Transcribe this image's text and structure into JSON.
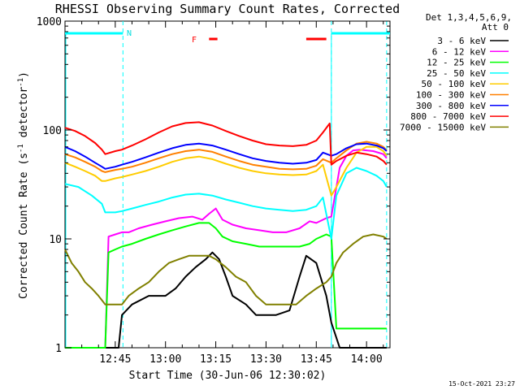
{
  "chart_data": {
    "type": "line",
    "title": "RHESSI Observing Summary Count Rates, Corrected",
    "xlabel": "Start Time (30-Jun-06 12:30:02)",
    "ylabel_main": "Corrected Count Rate (s",
    "ylabel_sup1": "-1",
    "ylabel_mid": " detector",
    "ylabel_sup2": "-1",
    "ylabel_end": ")",
    "y_scale": "log",
    "ylim": [
      1,
      1000
    ],
    "xlim_minutes": [
      0,
      97
    ],
    "x_tick_labels": [
      "12:45",
      "13:00",
      "13:15",
      "13:30",
      "13:45",
      "14:00"
    ],
    "x_tick_minutes": [
      15,
      30,
      45,
      60,
      75,
      90
    ],
    "y_tick_labels": [
      "1",
      "10",
      "100",
      "1000"
    ],
    "y_tick_values": [
      1,
      10,
      100,
      1000
    ],
    "legend_header_1": "Det 1,3,4,5,6,9,",
    "legend_header_2": "Att 0",
    "legend_position": "right, outside plot",
    "timestamp": "15-Oct-2021 23:27",
    "flag_labels": {
      "N": "N",
      "F": "F"
    },
    "flags": {
      "night": [
        [
          0,
          17.3
        ],
        [
          79.5,
          97
        ]
      ],
      "flare": [
        [
          43,
          45.5
        ],
        [
          72,
          78
        ]
      ]
    },
    "dashed_times_minutes": [
      17.3,
      79.5,
      96
    ],
    "series": [
      {
        "name": "3 - 6 keV",
        "color": "#000000",
        "x": [
          0,
          6,
          12,
          16,
          17,
          20,
          25,
          30,
          33,
          36,
          39,
          42,
          44,
          46,
          48,
          50,
          54,
          57,
          60,
          63,
          67,
          70,
          72,
          75,
          78,
          79.5,
          82,
          86,
          90,
          95,
          96
        ],
        "y": [
          1,
          1,
          1,
          1,
          2,
          2.5,
          3,
          3,
          3.5,
          4.5,
          5.5,
          6.5,
          7.5,
          6.5,
          4.5,
          3,
          2.5,
          2,
          2,
          2,
          2.2,
          4.5,
          7,
          6,
          3,
          1.7,
          1,
          1,
          1,
          1,
          1
        ]
      },
      {
        "name": "6 - 12 keV",
        "color": "#ff00ff",
        "x": [
          0,
          12,
          13,
          15,
          17,
          19,
          22,
          26,
          30,
          34,
          38,
          41,
          43,
          45,
          47,
          50,
          54,
          58,
          62,
          66,
          70,
          73,
          75,
          78,
          79.5,
          82,
          84,
          86,
          88,
          90,
          92,
          95,
          96
        ],
        "y": [
          1,
          1,
          10.5,
          11,
          11.5,
          11.5,
          12.5,
          13.5,
          14.5,
          15.5,
          16,
          15,
          17,
          19,
          15,
          13.5,
          12.5,
          12,
          11.5,
          11.5,
          12.5,
          14.5,
          14,
          15.5,
          16,
          45,
          58,
          65,
          66,
          65,
          64,
          60,
          55
        ]
      },
      {
        "name": "12 - 25 keV",
        "color": "#00ff00",
        "x": [
          0,
          12,
          13,
          15,
          17,
          20,
          24,
          28,
          32,
          36,
          40,
          43,
          45,
          47,
          50,
          54,
          58,
          62,
          66,
          70,
          73,
          75,
          78,
          79.5,
          81,
          84,
          87,
          90,
          92,
          95,
          96
        ],
        "y": [
          1,
          1,
          7.5,
          8,
          8.5,
          9,
          10,
          11,
          12,
          13,
          14,
          14,
          12.5,
          10.5,
          9.5,
          9,
          8.5,
          8.5,
          8.5,
          8.5,
          9,
          10,
          11,
          10.5,
          1.5,
          1.5,
          1.5,
          1.5,
          1.5,
          1.5,
          1.5
        ]
      },
      {
        "name": "25 - 50 keV",
        "color": "#00ffff",
        "x": [
          0,
          4,
          8,
          11,
          12,
          15,
          17,
          20,
          24,
          28,
          32,
          36,
          40,
          44,
          48,
          52,
          56,
          60,
          64,
          68,
          72,
          75,
          77,
          79.5,
          81,
          84,
          87,
          90,
          93,
          95,
          96
        ],
        "y": [
          32,
          30,
          25,
          21,
          17.5,
          17.5,
          18,
          19,
          20.5,
          22,
          24,
          25.5,
          26,
          25,
          23,
          21.5,
          20,
          19,
          18.5,
          18,
          18.5,
          20,
          24,
          10,
          25,
          40,
          45,
          42,
          38,
          34,
          30
        ]
      },
      {
        "name": "50 - 100 keV",
        "color": "#ffcc00",
        "x": [
          0,
          3,
          6,
          9,
          11,
          12,
          15,
          17,
          20,
          24,
          28,
          32,
          36,
          40,
          44,
          48,
          52,
          56,
          60,
          64,
          68,
          72,
          75,
          77,
          79.5,
          81,
          84,
          87,
          90,
          93,
          95,
          96
        ],
        "y": [
          50,
          46,
          42,
          38,
          34,
          34,
          36,
          37,
          39,
          42,
          46,
          51,
          55,
          57,
          54,
          49,
          45,
          42,
          40,
          39,
          38.5,
          39,
          42,
          48,
          25,
          30,
          45,
          62,
          70,
          70,
          64,
          58
        ]
      },
      {
        "name": "100 - 300 keV",
        "color": "#ff8000",
        "x": [
          0,
          3,
          6,
          9,
          11,
          12,
          15,
          17,
          20,
          24,
          28,
          32,
          36,
          40,
          44,
          48,
          52,
          56,
          60,
          64,
          68,
          72,
          75,
          77,
          79.5,
          81,
          84,
          87,
          90,
          93,
          95,
          96
        ],
        "y": [
          60,
          56,
          51,
          46,
          42,
          41,
          43,
          44,
          46,
          50,
          55,
          60,
          64,
          66,
          63,
          57,
          52,
          48,
          46,
          44,
          43.5,
          44,
          47,
          54,
          50,
          55,
          65,
          75,
          78,
          75,
          70,
          65
        ]
      },
      {
        "name": "300 - 800 keV",
        "color": "#0000ff",
        "x": [
          0,
          3,
          6,
          9,
          11,
          12,
          15,
          17,
          20,
          24,
          28,
          32,
          36,
          40,
          44,
          48,
          52,
          56,
          60,
          64,
          68,
          72,
          75,
          77,
          79.5,
          81,
          84,
          87,
          90,
          93,
          95,
          96
        ],
        "y": [
          70,
          64,
          57,
          50,
          46,
          44,
          46,
          48,
          51,
          56,
          62,
          68,
          73,
          75,
          72,
          66,
          60,
          55,
          52,
          50,
          49,
          50,
          53,
          62,
          58,
          60,
          68,
          74,
          75,
          72,
          68,
          64
        ]
      },
      {
        "name": "800 - 7000 keV",
        "color": "#ff0000",
        "x": [
          0,
          3,
          6,
          9,
          11,
          12,
          15,
          17,
          20,
          24,
          28,
          32,
          36,
          40,
          44,
          48,
          52,
          56,
          60,
          64,
          68,
          72,
          75,
          77,
          79,
          79.5,
          81,
          84,
          87,
          90,
          93,
          95,
          96
        ],
        "y": [
          105,
          98,
          88,
          76,
          66,
          60,
          64,
          66,
          72,
          82,
          95,
          108,
          116,
          118,
          110,
          98,
          88,
          80,
          74,
          72,
          71,
          73,
          80,
          95,
          115,
          48,
          52,
          58,
          62,
          60,
          57,
          52,
          48
        ]
      },
      {
        "name": "7000 - 15000 keV",
        "color": "#808000",
        "x": [
          0,
          2,
          4,
          6,
          8,
          10,
          12,
          14,
          16,
          17,
          19,
          22,
          25,
          28,
          31,
          34,
          37,
          40,
          43,
          45,
          48,
          51,
          54,
          57,
          60,
          63,
          66,
          69,
          72,
          75,
          78,
          79.5,
          81,
          83,
          86,
          89,
          92,
          95,
          96
        ],
        "y": [
          8,
          6,
          5,
          4,
          3.5,
          3,
          2.5,
          2.5,
          2.5,
          2.5,
          3,
          3.5,
          4,
          5,
          6,
          6.5,
          7,
          7,
          7,
          6.5,
          5.5,
          4.5,
          4,
          3,
          2.5,
          2.5,
          2.5,
          2.5,
          3,
          3.5,
          4,
          4.5,
          6,
          7.5,
          9,
          10.5,
          11,
          10.5,
          10
        ]
      }
    ]
  }
}
